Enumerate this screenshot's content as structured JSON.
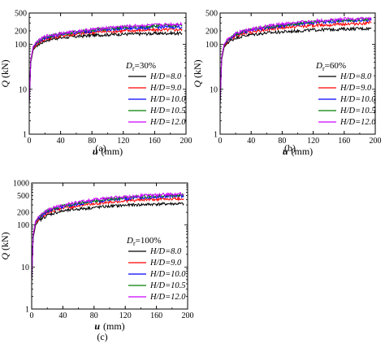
{
  "chart_data": [
    {
      "type": "line",
      "panel_label": "(a)",
      "xlabel_var": "u",
      "xlabel_unit": "(mm)",
      "ylabel_var": "Q",
      "ylabel_unit": "(kN)",
      "xlim": [
        0,
        200
      ],
      "ylim": [
        1,
        500
      ],
      "yscale": "log",
      "x_ticks": [
        0,
        40,
        80,
        120,
        160,
        200
      ],
      "y_ticks": [
        1,
        10,
        100,
        200,
        500
      ],
      "annotation": {
        "var": "D",
        "sub": "r",
        "value": "=30%"
      },
      "legend_placement": "lower-right",
      "series": [
        {
          "name": "H/D=8.0",
          "color": "#000000",
          "x": [
            0,
            2,
            5,
            10,
            20,
            30,
            40,
            60,
            80,
            100,
            120,
            140,
            160,
            180,
            195
          ],
          "y": [
            5,
            40,
            75,
            95,
            120,
            135,
            140,
            150,
            160,
            165,
            170,
            172,
            175,
            178,
            175
          ]
        },
        {
          "name": "H/D=9.0",
          "color": "#ff0000",
          "x": [
            0,
            2,
            5,
            10,
            20,
            30,
            40,
            60,
            80,
            100,
            120,
            140,
            160,
            180,
            195
          ],
          "y": [
            5,
            42,
            80,
            105,
            130,
            145,
            155,
            170,
            185,
            195,
            200,
            205,
            210,
            212,
            215
          ]
        },
        {
          "name": "H/D=10.0",
          "color": "#0000ff",
          "x": [
            0,
            2,
            5,
            10,
            20,
            30,
            40,
            60,
            80,
            100,
            120,
            140,
            160,
            180,
            195
          ],
          "y": [
            5,
            44,
            85,
            110,
            140,
            155,
            165,
            185,
            200,
            215,
            225,
            232,
            240,
            245,
            245
          ]
        },
        {
          "name": "H/D=10.5",
          "color": "#008000",
          "x": [
            0,
            2,
            5,
            10,
            20,
            30,
            40,
            60,
            80,
            100,
            120,
            140,
            160,
            180,
            195
          ],
          "y": [
            5,
            45,
            88,
            112,
            145,
            160,
            170,
            190,
            210,
            225,
            240,
            250,
            258,
            265,
            270
          ]
        },
        {
          "name": "H/D=12.0",
          "color": "#cc00ff",
          "x": [
            0,
            2,
            5,
            10,
            20,
            30,
            40,
            60,
            80,
            100,
            120,
            140,
            160,
            180,
            195
          ],
          "y": [
            5,
            46,
            90,
            115,
            150,
            165,
            175,
            195,
            215,
            235,
            250,
            262,
            270,
            280,
            285
          ]
        }
      ]
    },
    {
      "type": "line",
      "panel_label": "(b)",
      "xlabel_var": "u",
      "xlabel_unit": "(mm)",
      "ylabel_var": "Q",
      "ylabel_unit": "(kN)",
      "xlim": [
        0,
        200
      ],
      "ylim": [
        1,
        500
      ],
      "yscale": "log",
      "x_ticks": [
        0,
        40,
        80,
        120,
        160,
        200
      ],
      "y_ticks": [
        1,
        10,
        100,
        200,
        500
      ],
      "annotation": {
        "var": "D",
        "sub": "r",
        "value": "=60%"
      },
      "legend_placement": "lower-right",
      "series": [
        {
          "name": "H/D=8.0",
          "color": "#000000",
          "x": [
            0,
            2,
            5,
            10,
            20,
            30,
            40,
            60,
            80,
            100,
            120,
            140,
            160,
            180,
            195
          ],
          "y": [
            5,
            45,
            85,
            110,
            140,
            155,
            165,
            180,
            190,
            200,
            210,
            215,
            220,
            225,
            225
          ]
        },
        {
          "name": "H/D=9.0",
          "color": "#ff0000",
          "x": [
            0,
            2,
            5,
            10,
            20,
            30,
            40,
            60,
            80,
            100,
            120,
            140,
            160,
            180,
            195
          ],
          "y": [
            5,
            48,
            90,
            120,
            155,
            175,
            190,
            215,
            235,
            250,
            265,
            275,
            285,
            290,
            300
          ]
        },
        {
          "name": "H/D=10.0",
          "color": "#0000ff",
          "x": [
            0,
            2,
            5,
            10,
            20,
            30,
            40,
            60,
            80,
            100,
            120,
            140,
            160,
            180,
            195
          ],
          "y": [
            5,
            50,
            95,
            125,
            165,
            190,
            205,
            235,
            260,
            285,
            305,
            320,
            335,
            345,
            350
          ]
        },
        {
          "name": "H/D=10.5",
          "color": "#008000",
          "x": [
            0,
            2,
            5,
            10,
            20,
            30,
            40,
            60,
            80,
            100,
            120,
            140,
            160,
            180,
            195
          ],
          "y": [
            5,
            51,
            98,
            128,
            170,
            195,
            210,
            245,
            270,
            295,
            315,
            335,
            350,
            360,
            365
          ]
        },
        {
          "name": "H/D=12.0",
          "color": "#cc00ff",
          "x": [
            0,
            2,
            5,
            10,
            20,
            30,
            40,
            60,
            80,
            100,
            120,
            140,
            160,
            180,
            195
          ],
          "y": [
            5,
            52,
            100,
            130,
            175,
            200,
            220,
            255,
            285,
            310,
            330,
            350,
            365,
            375,
            380
          ]
        }
      ]
    },
    {
      "type": "line",
      "panel_label": "(c)",
      "xlabel_var": "u",
      "xlabel_unit": "(mm)",
      "ylabel_var": "Q",
      "ylabel_unit": "(kN)",
      "xlim": [
        0,
        200
      ],
      "ylim": [
        1,
        1000
      ],
      "yscale": "log",
      "x_ticks": [
        0,
        40,
        80,
        120,
        160,
        200
      ],
      "y_ticks": [
        1,
        10,
        100,
        200,
        500,
        1000
      ],
      "annotation": {
        "var": "D",
        "sub": "r",
        "value": "=100%"
      },
      "legend_placement": "lower-right",
      "series": [
        {
          "name": "H/D=8.0",
          "color": "#000000",
          "x": [
            0,
            2,
            5,
            10,
            20,
            30,
            40,
            60,
            80,
            100,
            120,
            140,
            160,
            180,
            195
          ],
          "y": [
            5,
            50,
            100,
            130,
            170,
            195,
            215,
            240,
            260,
            280,
            295,
            305,
            315,
            320,
            320
          ]
        },
        {
          "name": "H/D=9.0",
          "color": "#ff0000",
          "x": [
            0,
            2,
            5,
            10,
            20,
            30,
            40,
            60,
            80,
            100,
            120,
            140,
            160,
            180,
            195
          ],
          "y": [
            5,
            55,
            110,
            145,
            195,
            225,
            250,
            290,
            320,
            350,
            375,
            395,
            410,
            420,
            425
          ]
        },
        {
          "name": "H/D=10.0",
          "color": "#0000ff",
          "x": [
            0,
            2,
            5,
            10,
            20,
            30,
            40,
            60,
            80,
            100,
            120,
            140,
            160,
            180,
            195
          ],
          "y": [
            5,
            58,
            118,
            155,
            210,
            245,
            275,
            320,
            360,
            395,
            425,
            450,
            470,
            485,
            495
          ]
        },
        {
          "name": "H/D=10.5",
          "color": "#008000",
          "x": [
            0,
            2,
            5,
            10,
            20,
            30,
            40,
            60,
            80,
            100,
            120,
            140,
            160,
            180,
            195
          ],
          "y": [
            5,
            60,
            122,
            160,
            220,
            255,
            285,
            335,
            380,
            420,
            450,
            475,
            495,
            510,
            520
          ]
        },
        {
          "name": "H/D=12.0",
          "color": "#cc00ff",
          "x": [
            0,
            2,
            5,
            10,
            20,
            30,
            40,
            60,
            80,
            100,
            120,
            140,
            160,
            180,
            195
          ],
          "y": [
            5,
            62,
            125,
            165,
            225,
            265,
            300,
            350,
            400,
            440,
            470,
            500,
            520,
            540,
            550
          ]
        }
      ]
    }
  ]
}
